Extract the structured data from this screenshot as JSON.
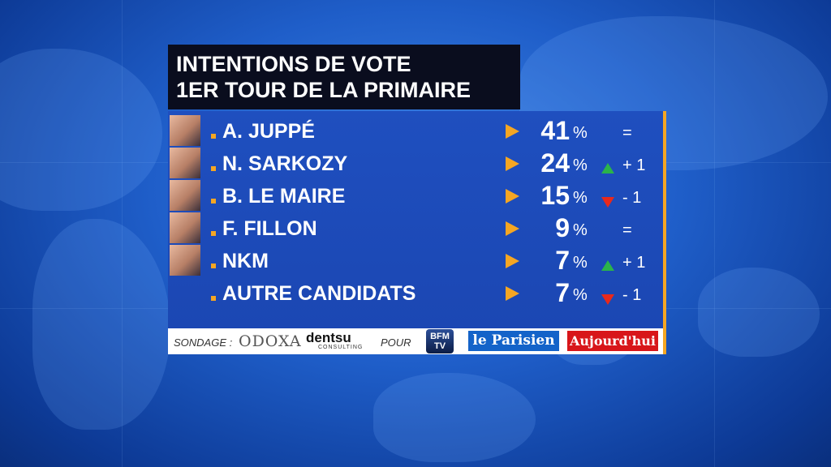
{
  "title": {
    "line1": "INTENTIONS DE VOTE",
    "line2": "1ER TOUR DE LA PRIMAIRE"
  },
  "chart_data": {
    "type": "table",
    "title": "INTENTIONS DE VOTE 1ER TOUR DE LA PRIMAIRE",
    "unit": "%",
    "rows": [
      {
        "name": "A. JUPPÉ",
        "value": 41,
        "change": "="
      },
      {
        "name": "N. SARKOZY",
        "value": 24,
        "change": "+ 1",
        "direction": "up"
      },
      {
        "name": "B. LE MAIRE",
        "value": 15,
        "change": "- 1",
        "direction": "down"
      },
      {
        "name": "F. FILLON",
        "value": 9,
        "change": "="
      },
      {
        "name": "NKM",
        "value": 7,
        "change": "+ 1",
        "direction": "up"
      },
      {
        "name": "AUTRE CANDIDATS",
        "value": 7,
        "change": "- 1",
        "direction": "down"
      }
    ]
  },
  "colors": {
    "accent": "#f5a623",
    "up": "#2bb34a",
    "down": "#e8291c",
    "panel": "#1f4fbf"
  },
  "source": {
    "label": "SONDAGE :",
    "pollster": "ODOXA",
    "agency": "dentsu",
    "agency_sub": "CONSULTING",
    "for": "POUR",
    "channel": "BFM TV",
    "paper1": "le Parisien",
    "paper2": "Aujourd'hui"
  }
}
